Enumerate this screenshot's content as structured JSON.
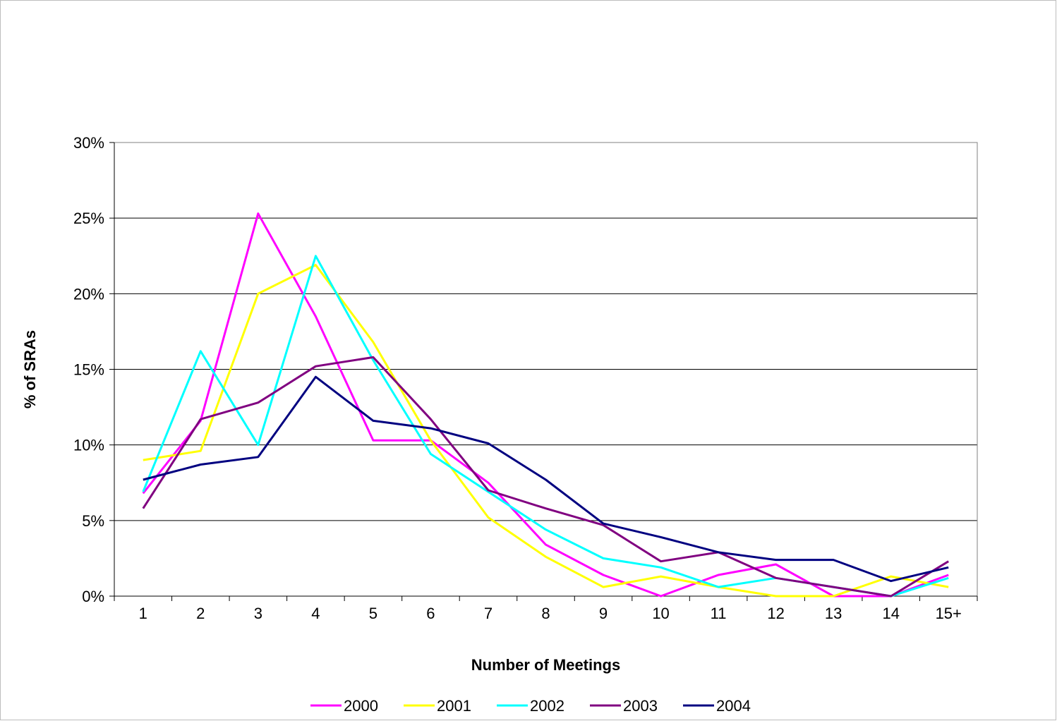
{
  "chart_data": {
    "type": "line",
    "title": "",
    "xlabel": "Number of Meetings",
    "ylabel": "% of SRAs",
    "categories": [
      "1",
      "2",
      "3",
      "4",
      "5",
      "6",
      "7",
      "8",
      "9",
      "10",
      "11",
      "12",
      "13",
      "14",
      "15+"
    ],
    "y_ticks": [
      "0%",
      "5%",
      "10%",
      "15%",
      "20%",
      "25%",
      "30%"
    ],
    "ylim": [
      0,
      30
    ],
    "y_tick_step": 5,
    "grid": "horizontal",
    "legend_position": "bottom",
    "series": [
      {
        "name": "2000",
        "color": "#ff00ff",
        "values": [
          6.8,
          11.6,
          25.3,
          18.5,
          10.3,
          10.3,
          7.5,
          3.4,
          1.4,
          0.0,
          1.4,
          2.1,
          0.0,
          0.0,
          1.4
        ]
      },
      {
        "name": "2001",
        "color": "#ffff00",
        "values": [
          9.0,
          9.6,
          20.0,
          21.9,
          16.8,
          10.3,
          5.2,
          2.6,
          0.6,
          1.3,
          0.6,
          0.0,
          0.0,
          1.3,
          0.6
        ]
      },
      {
        "name": "2002",
        "color": "#00ffff",
        "values": [
          6.9,
          16.2,
          10.0,
          22.5,
          15.6,
          9.4,
          6.9,
          4.4,
          2.5,
          1.9,
          0.6,
          1.2,
          0.6,
          0.0,
          1.2
        ]
      },
      {
        "name": "2003",
        "color": "#800080",
        "values": [
          5.8,
          11.7,
          12.8,
          15.2,
          15.8,
          11.7,
          7.0,
          5.8,
          4.7,
          2.3,
          2.9,
          1.2,
          0.6,
          0.0,
          2.3
        ]
      },
      {
        "name": "2004",
        "color": "#000080",
        "values": [
          7.7,
          8.7,
          9.2,
          14.5,
          11.6,
          11.1,
          10.1,
          7.7,
          4.8,
          3.9,
          2.9,
          2.4,
          2.4,
          1.0,
          1.9
        ]
      }
    ]
  }
}
